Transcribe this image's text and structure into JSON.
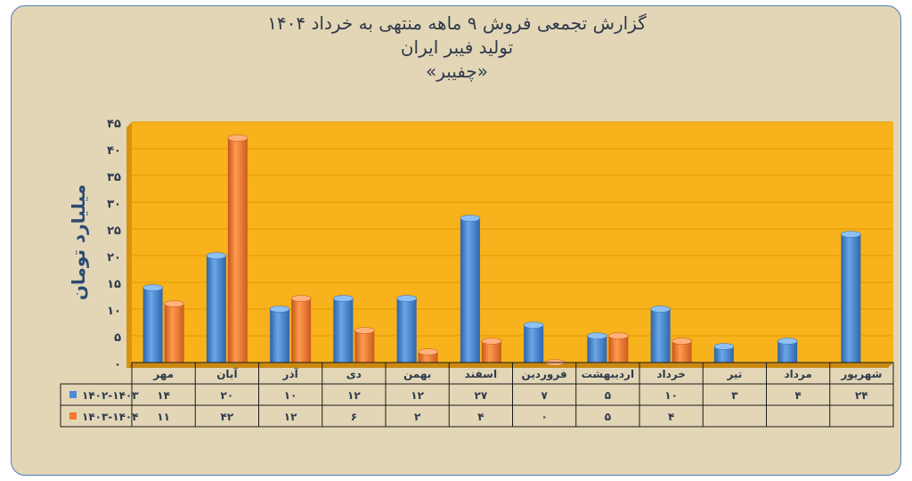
{
  "titles": {
    "line1": "گزارش تجمعی فروش ۹ ماهه منتهی به خرداد ۱۴۰۴",
    "line2": "تولید فیبر ایران",
    "line3": "«چفیبر»"
  },
  "chart_data": {
    "type": "bar",
    "ylabel": "میلیارد تومان",
    "ylim": [
      0,
      45
    ],
    "yticks": [
      0,
      5,
      10,
      15,
      20,
      25,
      30,
      35,
      40,
      45
    ],
    "ytick_labels": [
      "۰",
      "۵",
      "۱۰",
      "۱۵",
      "۲۰",
      "۲۵",
      "۳۰",
      "۳۵",
      "۴۰",
      "۴۵"
    ],
    "grid": true,
    "legend": "in-table-left",
    "categories": [
      "مهر",
      "آبان",
      "آذر",
      "دی",
      "بهمن",
      "اسفند",
      "فروردین",
      "اردیبهشت",
      "خرداد",
      "تیر",
      "مرداد",
      "شهریور"
    ],
    "series": [
      {
        "name": "۱۴۰۲-۱۴۰۳",
        "color": "#4a8ad6",
        "values": [
          14,
          20,
          10,
          12,
          12,
          27,
          7,
          5,
          10,
          3,
          4,
          24
        ],
        "labels": [
          "۱۴",
          "۲۰",
          "۱۰",
          "۱۲",
          "۱۲",
          "۲۷",
          "۷",
          "۵",
          "۱۰",
          "۳",
          "۴",
          "۲۴"
        ]
      },
      {
        "name": "۱۴۰۳-۱۴۰۴",
        "color": "#ee7a2e",
        "values": [
          11,
          42,
          12,
          6,
          2,
          4,
          0,
          5,
          4,
          null,
          null,
          null
        ],
        "labels": [
          "۱۱",
          "۴۲",
          "۱۲",
          "۶",
          "۲",
          "۴",
          "۰",
          "۵",
          "۴",
          "",
          "",
          ""
        ]
      }
    ]
  }
}
